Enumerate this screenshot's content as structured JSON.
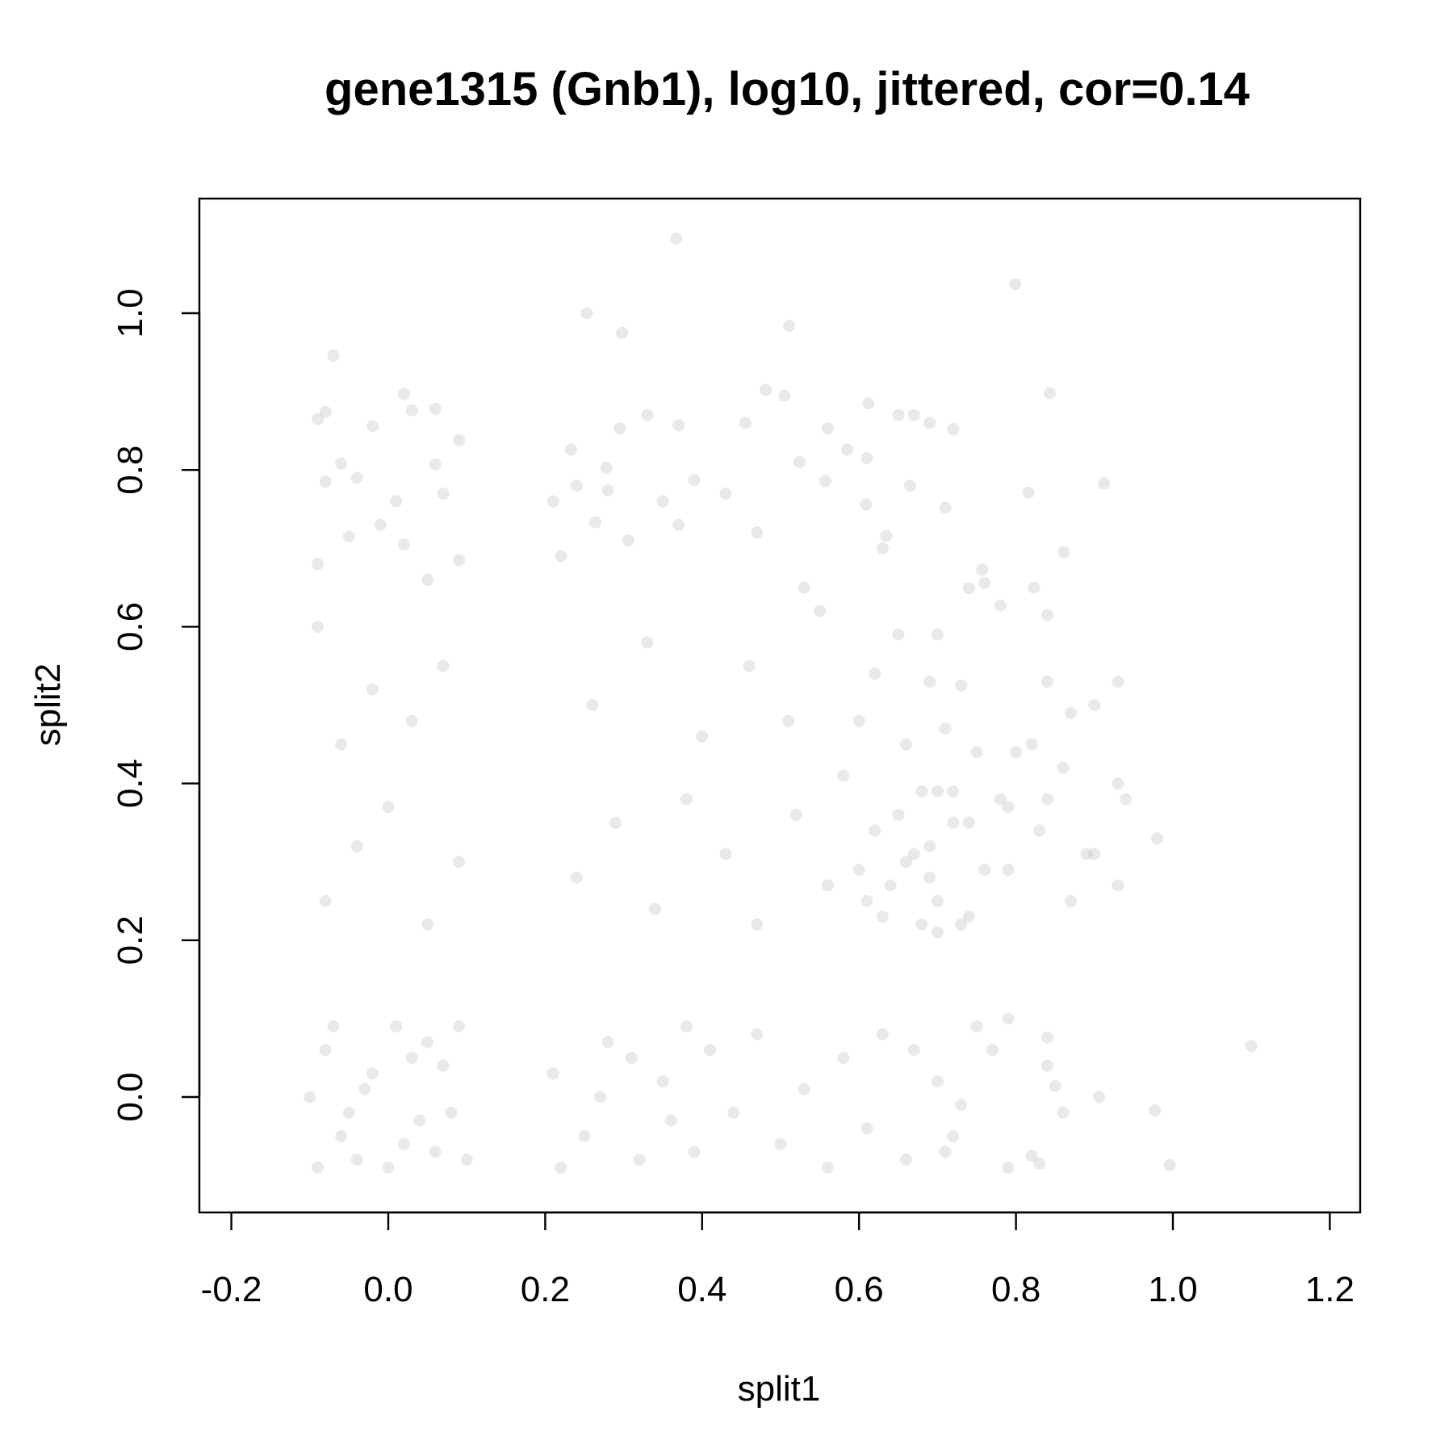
{
  "chart_data": {
    "type": "scatter",
    "title": "gene1315 (Gnb1), log10, jittered, cor=0.14",
    "xlabel": "split1",
    "ylabel": "split2",
    "xlim": [
      -0.25,
      1.23
    ],
    "ylim": [
      -0.15,
      1.15
    ],
    "x_ticks": [
      -0.2,
      0.0,
      0.2,
      0.4,
      0.6,
      0.8,
      1.0,
      1.2
    ],
    "x_tick_labels": [
      "-0.2",
      "0.0",
      "0.2",
      "0.4",
      "0.6",
      "0.8",
      "1.0",
      "1.2"
    ],
    "y_ticks": [
      0.0,
      0.2,
      0.4,
      0.6,
      0.8,
      1.0
    ],
    "y_tick_labels": [
      "0.0",
      "0.2",
      "0.4",
      "0.6",
      "0.8",
      "1.0"
    ],
    "grid": false,
    "legend": "none",
    "point_color": "#999999",
    "point_alpha": 0.22,
    "series": [
      {
        "values": [
          [
            -0.07,
            0.946
          ],
          [
            -0.08,
            0.874
          ],
          [
            -0.09,
            0.865
          ],
          [
            -0.06,
            0.808
          ],
          [
            -0.08,
            0.785
          ],
          [
            0.02,
            0.897
          ],
          [
            0.03,
            0.876
          ],
          [
            0.06,
            0.878
          ],
          [
            -0.02,
            0.856
          ],
          [
            0.09,
            0.838
          ],
          [
            0.06,
            0.807
          ],
          [
            -0.04,
            0.79
          ],
          [
            0.07,
            0.77
          ],
          [
            0.01,
            0.76
          ],
          [
            -0.01,
            0.73
          ],
          [
            -0.05,
            0.715
          ],
          [
            -0.09,
            0.68
          ],
          [
            0.02,
            0.705
          ],
          [
            0.09,
            0.685
          ],
          [
            0.05,
            0.66
          ],
          [
            0.233,
            0.826
          ],
          [
            0.24,
            0.78
          ],
          [
            0.253,
            1.0
          ],
          [
            0.298,
            0.975
          ],
          [
            0.264,
            0.733
          ],
          [
            0.278,
            0.803
          ],
          [
            0.33,
            0.87
          ],
          [
            0.37,
            0.857
          ],
          [
            0.295,
            0.853
          ],
          [
            0.35,
            0.76
          ],
          [
            0.37,
            0.73
          ],
          [
            0.39,
            0.787
          ],
          [
            0.21,
            0.76
          ],
          [
            0.22,
            0.69
          ],
          [
            0.28,
            0.774
          ],
          [
            0.306,
            0.71
          ],
          [
            0.367,
            1.095
          ],
          [
            0.455,
            0.86
          ],
          [
            0.481,
            0.902
          ],
          [
            0.505,
            0.895
          ],
          [
            0.511,
            0.984
          ],
          [
            0.56,
            0.853
          ],
          [
            0.585,
            0.826
          ],
          [
            0.612,
            0.885
          ],
          [
            0.61,
            0.815
          ],
          [
            0.524,
            0.81
          ],
          [
            0.557,
            0.786
          ],
          [
            0.43,
            0.77
          ],
          [
            0.47,
            0.72
          ],
          [
            0.53,
            0.65
          ],
          [
            0.65,
            0.87
          ],
          [
            0.67,
            0.87
          ],
          [
            0.69,
            0.86
          ],
          [
            0.72,
            0.852
          ],
          [
            0.665,
            0.78
          ],
          [
            0.609,
            0.756
          ],
          [
            0.635,
            0.716
          ],
          [
            0.71,
            0.752
          ],
          [
            0.757,
            0.673
          ],
          [
            0.63,
            0.7
          ],
          [
            0.799,
            1.037
          ],
          [
            0.816,
            0.771
          ],
          [
            0.823,
            0.65
          ],
          [
            0.843,
            0.898
          ],
          [
            0.861,
            0.695
          ],
          [
            0.84,
            0.615
          ],
          [
            0.912,
            0.783
          ],
          [
            0.76,
            0.656
          ],
          [
            0.78,
            0.627
          ],
          [
            0.74,
            0.649
          ],
          [
            0.65,
            0.59
          ],
          [
            0.7,
            0.59
          ],
          [
            0.69,
            0.53
          ],
          [
            0.73,
            0.525
          ],
          [
            0.71,
            0.47
          ],
          [
            0.66,
            0.45
          ],
          [
            0.62,
            0.54
          ],
          [
            0.6,
            0.48
          ],
          [
            0.75,
            0.44
          ],
          [
            0.78,
            0.38
          ],
          [
            0.82,
            0.45
          ],
          [
            0.8,
            0.44
          ],
          [
            0.84,
            0.53
          ],
          [
            0.87,
            0.49
          ],
          [
            0.86,
            0.42
          ],
          [
            0.9,
            0.5
          ],
          [
            0.93,
            0.53
          ],
          [
            0.93,
            0.4
          ],
          [
            0.94,
            0.38
          ],
          [
            0.89,
            0.31
          ],
          [
            0.9,
            0.31
          ],
          [
            0.87,
            0.25
          ],
          [
            0.93,
            0.27
          ],
          [
            0.98,
            0.33
          ],
          [
            0.84,
            0.38
          ],
          [
            0.83,
            0.34
          ],
          [
            0.79,
            0.37
          ],
          [
            0.79,
            0.29
          ],
          [
            0.76,
            0.29
          ],
          [
            0.74,
            0.35
          ],
          [
            0.73,
            0.22
          ],
          [
            0.74,
            0.23
          ],
          [
            0.7,
            0.25
          ],
          [
            0.7,
            0.21
          ],
          [
            0.68,
            0.22
          ],
          [
            0.69,
            0.28
          ],
          [
            0.67,
            0.31
          ],
          [
            0.66,
            0.3
          ],
          [
            0.64,
            0.27
          ],
          [
            0.63,
            0.23
          ],
          [
            0.61,
            0.25
          ],
          [
            0.6,
            0.29
          ],
          [
            0.62,
            0.34
          ],
          [
            0.65,
            0.36
          ],
          [
            0.68,
            0.39
          ],
          [
            0.7,
            0.39
          ],
          [
            0.72,
            0.39
          ],
          [
            0.72,
            0.35
          ],
          [
            0.69,
            0.32
          ],
          [
            1.1,
            0.065
          ],
          [
            0.977,
            -0.017
          ],
          [
            0.996,
            -0.087
          ],
          [
            0.906,
            0.0
          ],
          [
            0.86,
            -0.02
          ],
          [
            0.85,
            0.014
          ],
          [
            0.84,
            0.04
          ],
          [
            0.84,
            0.076
          ],
          [
            0.83,
            -0.085
          ],
          [
            0.82,
            -0.075
          ],
          [
            0.79,
            0.1
          ],
          [
            0.79,
            -0.09
          ],
          [
            0.77,
            0.06
          ],
          [
            0.75,
            0.09
          ],
          [
            0.73,
            -0.01
          ],
          [
            0.72,
            -0.05
          ],
          [
            0.7,
            0.02
          ],
          [
            0.71,
            -0.07
          ],
          [
            0.67,
            0.06
          ],
          [
            0.66,
            -0.08
          ],
          [
            -0.09,
            -0.09
          ],
          [
            -0.06,
            -0.05
          ],
          [
            -0.02,
            0.03
          ],
          [
            0.02,
            -0.06
          ],
          [
            0.05,
            0.07
          ],
          [
            0.08,
            -0.02
          ],
          [
            -0.08,
            0.06
          ],
          [
            -0.04,
            -0.08
          ],
          [
            0.01,
            0.09
          ],
          [
            0.07,
            0.04
          ],
          [
            -0.1,
            0.0
          ],
          [
            0.1,
            -0.08
          ],
          [
            -0.03,
            0.01
          ],
          [
            0.04,
            -0.03
          ],
          [
            0.0,
            -0.09
          ],
          [
            -0.07,
            0.09
          ],
          [
            0.09,
            0.09
          ],
          [
            -0.05,
            -0.02
          ],
          [
            0.03,
            0.05
          ],
          [
            0.06,
            -0.07
          ],
          [
            0.21,
            0.03
          ],
          [
            0.25,
            -0.05
          ],
          [
            0.28,
            0.07
          ],
          [
            0.32,
            -0.08
          ],
          [
            0.35,
            0.02
          ],
          [
            0.38,
            0.09
          ],
          [
            0.22,
            -0.09
          ],
          [
            0.27,
            0.0
          ],
          [
            0.31,
            0.05
          ],
          [
            0.36,
            -0.03
          ],
          [
            0.39,
            -0.07
          ],
          [
            0.41,
            0.06
          ],
          [
            0.44,
            -0.02
          ],
          [
            0.47,
            0.08
          ],
          [
            0.5,
            -0.06
          ],
          [
            0.53,
            0.01
          ],
          [
            0.56,
            -0.09
          ],
          [
            0.58,
            0.05
          ],
          [
            0.61,
            -0.04
          ],
          [
            0.63,
            0.08
          ],
          [
            -0.08,
            0.25
          ],
          [
            -0.04,
            0.32
          ],
          [
            0.0,
            0.37
          ],
          [
            0.05,
            0.22
          ],
          [
            0.09,
            0.3
          ],
          [
            -0.06,
            0.45
          ],
          [
            -0.02,
            0.52
          ],
          [
            0.03,
            0.48
          ],
          [
            0.07,
            0.55
          ],
          [
            -0.09,
            0.6
          ],
          [
            0.24,
            0.28
          ],
          [
            0.29,
            0.35
          ],
          [
            0.34,
            0.24
          ],
          [
            0.38,
            0.38
          ],
          [
            0.43,
            0.31
          ],
          [
            0.47,
            0.22
          ],
          [
            0.52,
            0.36
          ],
          [
            0.56,
            0.27
          ],
          [
            0.26,
            0.5
          ],
          [
            0.33,
            0.58
          ],
          [
            0.4,
            0.46
          ],
          [
            0.46,
            0.55
          ],
          [
            0.51,
            0.48
          ],
          [
            0.55,
            0.62
          ],
          [
            0.58,
            0.41
          ]
        ]
      }
    ]
  }
}
